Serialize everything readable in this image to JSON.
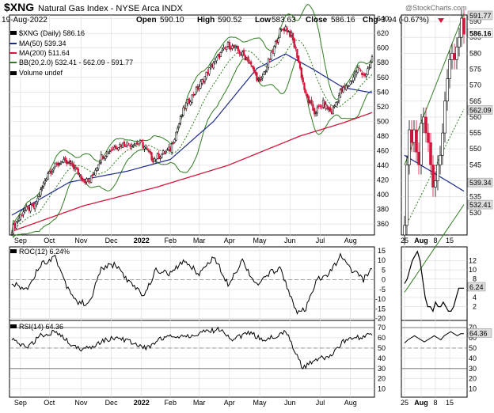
{
  "header": {
    "symbol": "$XNG",
    "name": "Natural Gas Index - NYSE Arca INDX",
    "date": "19-Aug-2022",
    "open_label": "Open",
    "open": "590.10",
    "high_label": "High",
    "high": "590.52",
    "low_label": "Low",
    "low": "583.63",
    "close_label": "Close",
    "close": "586.16",
    "chg_label": "Chg",
    "chg": "-3.94 (-0.67%)",
    "watermark": "@StockCharts.com"
  },
  "legend": {
    "price": "$XNG (Daily) 586.16",
    "ma50": "MA(50) 539.34",
    "ma200": "MA(200) 511.64",
    "bb": "BB(20,2.0) 532.41 - 562.09 - 591.77",
    "volume": "Volume undef"
  },
  "roc_legend": "ROC(12) 6.24%",
  "rsi_legend": "RSI(14) 64.36",
  "colors": {
    "up": "#000000",
    "down": "#d4143c",
    "ma50": "#1c2a8c",
    "ma200": "#d4143c",
    "bb": "#2e7d1f",
    "grid": "#d9d9d9",
    "tag": "#dcdcdc"
  },
  "chart_data": [
    {
      "type": "candlestick",
      "title": "$XNG Natural Gas Index daily",
      "x_labels": [
        "Sep",
        "Oct",
        "Nov",
        "Dec",
        "2022",
        "Feb",
        "Mar",
        "Apr",
        "May",
        "Jun",
        "Jul",
        "Aug"
      ],
      "y_ticks": [
        360,
        380,
        400,
        420,
        440,
        460,
        480,
        500,
        520,
        540,
        560,
        580,
        600,
        620,
        640
      ],
      "ylim": [
        345,
        645
      ],
      "close_anchors": [
        [
          0,
          352
        ],
        [
          8,
          378
        ],
        [
          16,
          384
        ],
        [
          25,
          430
        ],
        [
          34,
          445
        ],
        [
          42,
          440
        ],
        [
          50,
          420
        ],
        [
          54,
          418
        ],
        [
          62,
          452
        ],
        [
          72,
          466
        ],
        [
          80,
          470
        ],
        [
          90,
          470
        ],
        [
          98,
          448
        ],
        [
          110,
          462
        ],
        [
          120,
          520
        ],
        [
          130,
          548
        ],
        [
          140,
          580
        ],
        [
          150,
          604
        ],
        [
          156,
          598
        ],
        [
          164,
          584
        ],
        [
          172,
          552
        ],
        [
          180,
          590
        ],
        [
          186,
          622
        ],
        [
          190,
          628
        ],
        [
          194,
          616
        ],
        [
          198,
          590
        ],
        [
          204,
          535
        ],
        [
          210,
          512
        ],
        [
          216,
          524
        ],
        [
          222,
          512
        ],
        [
          228,
          540
        ],
        [
          234,
          550
        ],
        [
          240,
          572
        ],
        [
          246,
          562
        ],
        [
          250,
          586
        ]
      ],
      "ma50_anchors": [
        [
          0,
          372
        ],
        [
          40,
          417
        ],
        [
          80,
          432
        ],
        [
          110,
          448
        ],
        [
          140,
          500
        ],
        [
          170,
          572
        ],
        [
          190,
          592
        ],
        [
          210,
          570
        ],
        [
          230,
          546
        ],
        [
          250,
          539
        ]
      ],
      "ma200_anchors": [
        [
          0,
          350
        ],
        [
          50,
          385
        ],
        [
          100,
          410
        ],
        [
          150,
          440
        ],
        [
          200,
          480
        ],
        [
          230,
          498
        ],
        [
          250,
          512
        ]
      ],
      "ma50": 539.34,
      "ma200": 511.64,
      "bb_upper": 591.77,
      "bb_middle": 562.09,
      "bb_lower": 532.41,
      "last_close": 586.16
    },
    {
      "type": "candlestick",
      "title": "$XNG zoom inset",
      "x_labels": [
        "25",
        "Aug",
        "8",
        "15"
      ],
      "y_ticks": [
        530,
        535,
        540,
        545,
        550,
        555,
        560,
        565,
        570,
        575,
        580,
        585,
        590
      ],
      "ylim": [
        523,
        592
      ],
      "closes": [
        526,
        545,
        556,
        552,
        556,
        549,
        545,
        558,
        560,
        555,
        552,
        545,
        538,
        540,
        545,
        548,
        555,
        565,
        572,
        578,
        580,
        578,
        582,
        585,
        591,
        586
      ],
      "value_tags": [
        "591.77",
        "586.16",
        "562.09",
        "539.34",
        "532.41"
      ]
    },
    {
      "type": "line",
      "title": "ROC(12)",
      "y_ticks": [
        15,
        10,
        5,
        0,
        -5,
        -10,
        -15,
        -20
      ],
      "ylim": [
        -21,
        17
      ],
      "anchors": [
        [
          0,
          -2
        ],
        [
          10,
          -5
        ],
        [
          20,
          8
        ],
        [
          30,
          12
        ],
        [
          38,
          -3
        ],
        [
          46,
          -12
        ],
        [
          54,
          -12
        ],
        [
          62,
          6
        ],
        [
          72,
          8
        ],
        [
          82,
          -2
        ],
        [
          92,
          -8
        ],
        [
          100,
          5
        ],
        [
          110,
          3
        ],
        [
          120,
          10
        ],
        [
          130,
          3
        ],
        [
          140,
          12
        ],
        [
          150,
          -2
        ],
        [
          160,
          10
        ],
        [
          170,
          -3
        ],
        [
          180,
          4
        ],
        [
          186,
          6
        ],
        [
          192,
          -5
        ],
        [
          198,
          -18
        ],
        [
          204,
          -15
        ],
        [
          212,
          0
        ],
        [
          220,
          3
        ],
        [
          228,
          12
        ],
        [
          236,
          5
        ],
        [
          244,
          0
        ],
        [
          250,
          6
        ]
      ],
      "inset_y_ticks": [
        12,
        10,
        8,
        6,
        4,
        2
      ],
      "inset_ylim": [
        -1,
        15
      ],
      "inset_values": [
        7,
        8,
        10,
        12,
        13,
        14,
        12,
        8,
        4,
        2,
        2,
        1,
        3,
        2,
        2,
        3,
        2,
        1,
        1,
        2,
        4,
        6,
        6,
        6
      ],
      "current_tag": "6.24",
      "current": 6.24
    },
    {
      "type": "line",
      "title": "RSI(14)",
      "y_ticks": [
        70,
        60,
        50,
        40,
        30,
        20,
        10
      ],
      "ylim": [
        2,
        77
      ],
      "anchors": [
        [
          0,
          58
        ],
        [
          10,
          50
        ],
        [
          20,
          62
        ],
        [
          30,
          66
        ],
        [
          40,
          55
        ],
        [
          48,
          48
        ],
        [
          56,
          52
        ],
        [
          64,
          58
        ],
        [
          74,
          60
        ],
        [
          84,
          55
        ],
        [
          94,
          50
        ],
        [
          104,
          60
        ],
        [
          114,
          62
        ],
        [
          124,
          62
        ],
        [
          134,
          66
        ],
        [
          144,
          68
        ],
        [
          154,
          58
        ],
        [
          164,
          66
        ],
        [
          174,
          58
        ],
        [
          184,
          62
        ],
        [
          190,
          68
        ],
        [
          196,
          48
        ],
        [
          202,
          30
        ],
        [
          210,
          38
        ],
        [
          220,
          42
        ],
        [
          230,
          56
        ],
        [
          240,
          60
        ],
        [
          250,
          64
        ]
      ],
      "inset_y_ticks": [
        70,
        60,
        50,
        40,
        30,
        20,
        10
      ],
      "inset_ylim": [
        2,
        77
      ],
      "inset_values": [
        55,
        58,
        60,
        62,
        60,
        58,
        56,
        58,
        60,
        62,
        60,
        58,
        62,
        64,
        66,
        64,
        62,
        64,
        64
      ],
      "current_tag": "64.36",
      "current": 64.36
    }
  ]
}
